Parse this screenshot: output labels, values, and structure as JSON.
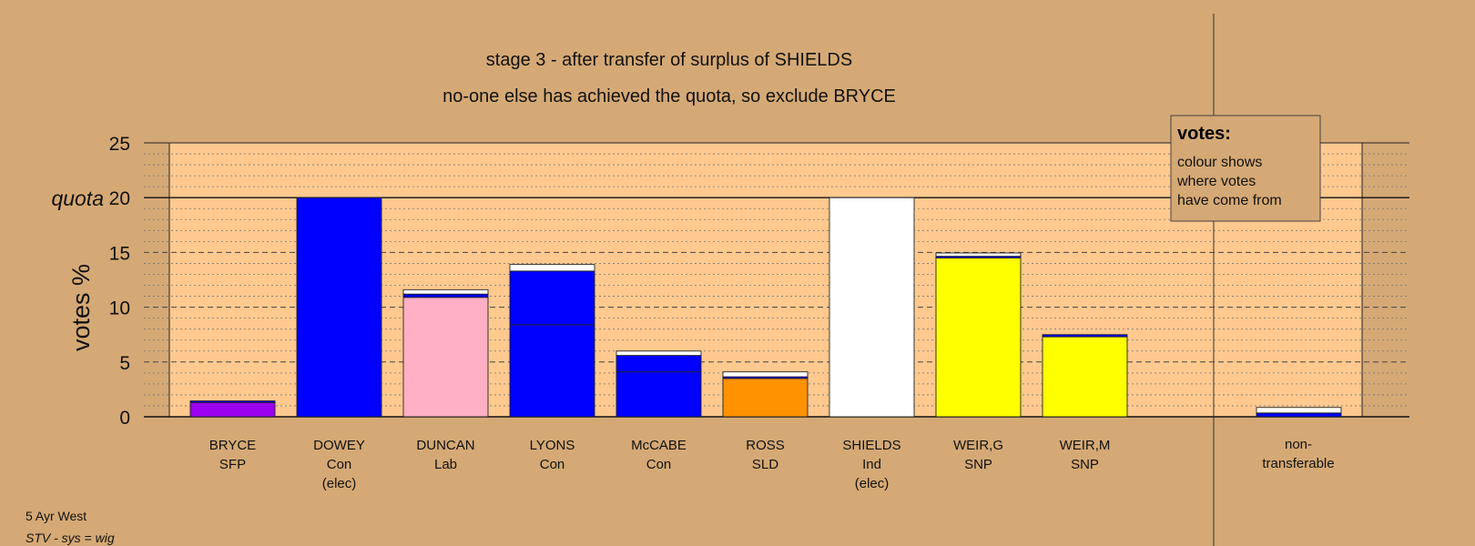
{
  "colors": {
    "background": "#d5a975",
    "plot_area": "#ffc98f",
    "SFP": "#9b00f0",
    "Con": "#0000ff",
    "Lab": "#ffb0c4",
    "SLD": "#ff9200",
    "Ind": "#ffffff",
    "SNP": "#ffff00",
    "nontransferable": "#ffffff"
  },
  "chart_data": {
    "type": "bar",
    "stacked": true,
    "title": "stage 3 - after transfer of surplus of SHIELDS",
    "subtitle": "no-one else has achieved the quota, so exclude BRYCE",
    "ylabel": "votes %",
    "quota_label": "quota",
    "quota": 20,
    "ylim": [
      0,
      25
    ],
    "yticks": [
      "0",
      "5",
      "10",
      "15",
      "20",
      "25"
    ],
    "grid": true,
    "candidates": [
      {
        "name": "BRYCE",
        "party": "SFP",
        "note": "",
        "segments": [
          {
            "value": 1.3,
            "color": "#9b00f0"
          },
          {
            "value": 0.15,
            "color": "#0000ff"
          }
        ]
      },
      {
        "name": "DOWEY",
        "party": "Con",
        "note": "(elec)",
        "segments": [
          {
            "value": 20,
            "color": "#0000ff"
          }
        ]
      },
      {
        "name": "DUNCAN",
        "party": "Lab",
        "note": "",
        "segments": [
          {
            "value": 10.9,
            "color": "#ffb0c4"
          },
          {
            "value": 0.3,
            "color": "#0000ff"
          },
          {
            "value": 0.4,
            "color": "#ffffff"
          }
        ]
      },
      {
        "name": "LYONS",
        "party": "Con",
        "note": "",
        "segments": [
          {
            "value": 8.4,
            "color": "#0000ff"
          },
          {
            "value": 4.9,
            "color": "#0000ff"
          },
          {
            "value": 0.6,
            "color": "#ffffff"
          }
        ]
      },
      {
        "name": "McCABE",
        "party": "Con",
        "note": "",
        "segments": [
          {
            "value": 4.1,
            "color": "#0000ff"
          },
          {
            "value": 1.5,
            "color": "#0000ff"
          },
          {
            "value": 0.4,
            "color": "#ffffff"
          }
        ]
      },
      {
        "name": "ROSS",
        "party": "SLD",
        "note": "",
        "segments": [
          {
            "value": 3.5,
            "color": "#ff9200"
          },
          {
            "value": 0.15,
            "color": "#0000ff"
          },
          {
            "value": 0.45,
            "color": "#ffffff"
          }
        ]
      },
      {
        "name": "SHIELDS",
        "party": "Ind",
        "note": "(elec)",
        "segments": [
          {
            "value": 20,
            "color": "#ffffff"
          }
        ]
      },
      {
        "name": "WEIR,G",
        "party": "SNP",
        "note": "",
        "segments": [
          {
            "value": 14.5,
            "color": "#ffff00"
          },
          {
            "value": 0.15,
            "color": "#0000ff"
          },
          {
            "value": 0.3,
            "color": "#ffffff"
          }
        ]
      },
      {
        "name": "WEIR,M",
        "party": "SNP",
        "note": "",
        "segments": [
          {
            "value": 7.3,
            "color": "#ffff00"
          },
          {
            "value": 0.2,
            "color": "#0000ff"
          }
        ]
      }
    ],
    "nontransferable": {
      "label_line1": "non-",
      "label_line2": "transferable",
      "segments": [
        {
          "value": 0.35,
          "color": "#0000ff"
        },
        {
          "value": 0.5,
          "color": "#ffffff"
        }
      ]
    },
    "legend": {
      "title": "votes:",
      "lines": [
        "colour shows",
        "where votes",
        "have come from"
      ]
    }
  },
  "footer": {
    "line1": "5 Ayr West",
    "line2": "STV - sys = wig"
  }
}
